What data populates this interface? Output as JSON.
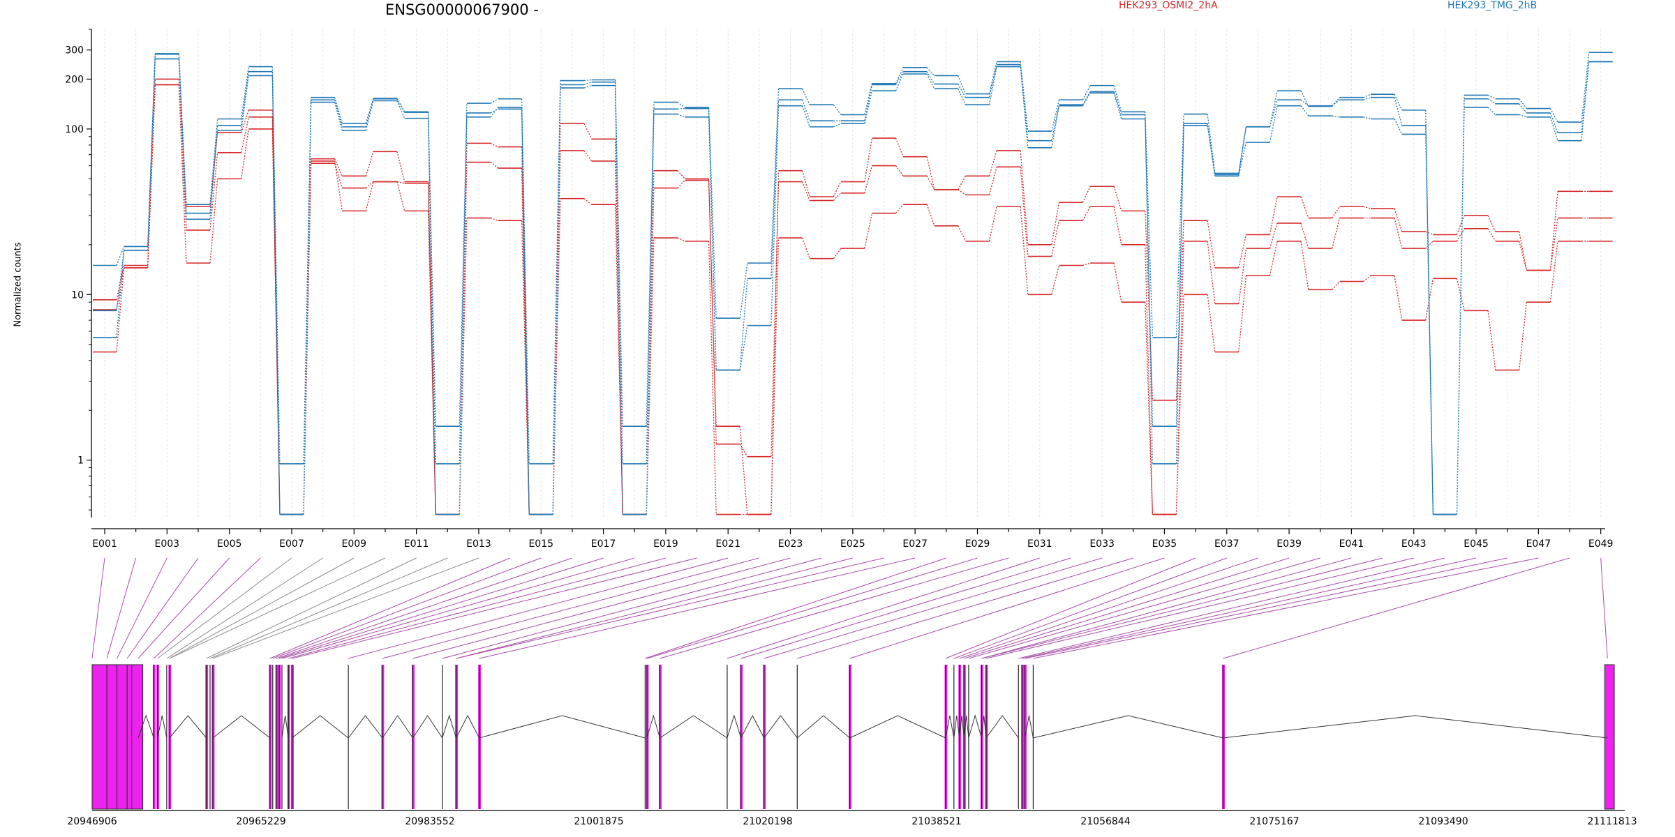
{
  "chart_data": {
    "type": "line",
    "title": "ENSG00000067900 -",
    "ylabel": "Normalized counts",
    "xlabel": "",
    "yscale": "log",
    "ylim": [
      0.45,
      400
    ],
    "yticks": [
      "1",
      "10",
      "100",
      "200",
      "300"
    ],
    "ytick_values": [
      1,
      10,
      100,
      200,
      300
    ],
    "grid": "vertical",
    "legend_position": "top",
    "categories": [
      "E001",
      "E002",
      "E003",
      "E004",
      "E005",
      "E006",
      "E007",
      "E008",
      "E009",
      "E010",
      "E011",
      "E012",
      "E013",
      "E014",
      "E015",
      "E016",
      "E017",
      "E018",
      "E019",
      "E020",
      "E021",
      "E022",
      "E023",
      "E024",
      "E025",
      "E026",
      "E027",
      "E028",
      "E029",
      "E030",
      "E031",
      "E032",
      "E033",
      "E034",
      "E035",
      "E036",
      "E037",
      "E038",
      "E039",
      "E040",
      "E041",
      "E042",
      "E043",
      "E044",
      "E045",
      "E046",
      "E047",
      "E048",
      "E049"
    ],
    "x_tick_labels": [
      "E001",
      "E003",
      "E005",
      "E007",
      "E009",
      "E011",
      "E013",
      "E015",
      "E017",
      "E019",
      "E021",
      "E023",
      "E025",
      "E027",
      "E029",
      "E031",
      "E033",
      "E035",
      "E037",
      "E039",
      "E041",
      "E043",
      "E045",
      "E047",
      "E049"
    ],
    "groups": [
      {
        "name": "HEK293_OSMI2_2hA",
        "color": "#d62728"
      },
      {
        "name": "HEK293_TMG_2hB",
        "color": "#1f77b4"
      }
    ],
    "series": [
      {
        "group": "HEK293_OSMI2_2hA",
        "values": [
          9.3,
          15,
          200,
          34,
          95,
          130,
          0.47,
          66,
          52,
          73,
          48,
          0.47,
          82,
          78,
          0.47,
          108,
          87,
          0.47,
          56,
          50,
          1.6,
          0.47,
          56,
          39,
          48,
          88,
          68,
          43,
          52,
          74,
          20,
          36,
          45,
          32,
          2.3,
          28,
          14.5,
          23,
          39,
          29,
          34,
          33,
          24,
          23,
          30,
          24,
          14,
          42,
          42
        ]
      },
      {
        "group": "HEK293_OSMI2_2hA",
        "values": [
          8.1,
          14.5,
          185,
          24.5,
          72,
          118,
          0.47,
          62,
          44,
          48,
          47,
          0.47,
          63,
          58,
          0.47,
          74,
          64,
          0.47,
          44,
          49,
          1.25,
          1.05,
          48,
          37,
          41,
          60,
          52,
          43,
          40,
          59,
          17,
          28,
          34,
          20,
          0.47,
          21,
          8.8,
          19,
          27,
          19,
          29,
          29,
          19,
          21,
          25,
          21,
          14,
          29,
          29
        ]
      },
      {
        "group": "HEK293_OSMI2_2hA",
        "values": [
          4.5,
          14.5,
          185,
          15.5,
          50,
          100,
          0.47,
          64,
          32,
          48,
          32,
          0.47,
          29,
          28,
          0.47,
          38,
          35,
          0.47,
          22,
          21,
          0.47,
          0.47,
          22,
          16.5,
          19,
          31,
          35,
          26,
          21,
          34,
          10,
          15,
          15.5,
          9,
          0.47,
          10,
          4.5,
          13,
          21,
          10.7,
          12,
          13,
          7,
          12.5,
          8,
          3.5,
          9,
          21,
          21
        ]
      },
      {
        "group": "HEK293_TMG_2hB",
        "values": [
          15,
          19.5,
          285,
          35,
          115,
          238,
          0.95,
          155,
          108,
          153,
          127,
          1.6,
          143,
          152,
          0.95,
          196,
          198,
          1.6,
          145,
          135,
          7.2,
          15.5,
          175,
          140,
          122,
          188,
          235,
          210,
          163,
          255,
          97,
          150,
          183,
          127,
          5.5,
          123,
          54,
          103,
          170,
          137,
          155,
          162,
          130,
          0.47,
          160,
          152,
          133,
          110,
          290
        ]
      },
      {
        "group": "HEK293_TMG_2hB",
        "values": [
          8,
          18.5,
          283,
          28.5,
          105,
          222,
          0.47,
          150,
          103,
          152,
          126,
          0.95,
          118,
          135,
          0.47,
          185,
          192,
          0.95,
          132,
          133,
          3.5,
          12.5,
          150,
          112,
          112,
          185,
          222,
          187,
          155,
          245,
          85,
          140,
          168,
          122,
          1.6,
          108,
          53,
          103,
          150,
          138,
          150,
          155,
          105,
          0.47,
          152,
          142,
          125,
          95,
          255
        ]
      },
      {
        "group": "HEK293_TMG_2hB",
        "values": [
          5.5,
          18.5,
          265,
          31,
          98,
          210,
          0.47,
          145,
          98,
          148,
          116,
          0.47,
          125,
          132,
          0.47,
          177,
          183,
          0.47,
          123,
          118,
          3.5,
          6.5,
          138,
          103,
          108,
          170,
          215,
          175,
          140,
          238,
          77,
          138,
          165,
          115,
          0.95,
          105,
          52,
          83,
          138,
          120,
          118,
          115,
          93,
          0.47,
          135,
          122,
          118,
          85,
          255
        ]
      }
    ],
    "gene_model": {
      "coord_labels": [
        "20946906",
        "20965229",
        "20983552",
        "21001875",
        "21020198",
        "21038521",
        "21056844",
        "21075167",
        "21093490",
        "21111813"
      ],
      "exon_fill_color": "#ee22ee",
      "exon_line_color": "#222222",
      "connector_color_highlight": "#a64ca6",
      "connector_color_plain": "#8a8a8a",
      "exon_genomic_positions": [
        20946906,
        20948500,
        20949600,
        20950700,
        20951900,
        20953600,
        20954000,
        20955000,
        20955300,
        20959300,
        20959700,
        20960000,
        20966200,
        20966500,
        20966900,
        20967200,
        20967500,
        20968200,
        20968600,
        20974700,
        20978400,
        20981700,
        20984900,
        20986400,
        20988900,
        21006900,
        21007100,
        21008500,
        21015800,
        21017300,
        21019800,
        21023400,
        21029100,
        21039500,
        21040400,
        21041000,
        21041500,
        21042000,
        21043400,
        21043900,
        21047400,
        21047800,
        21048100,
        21049000,
        21069600,
        21111300
      ]
    }
  }
}
